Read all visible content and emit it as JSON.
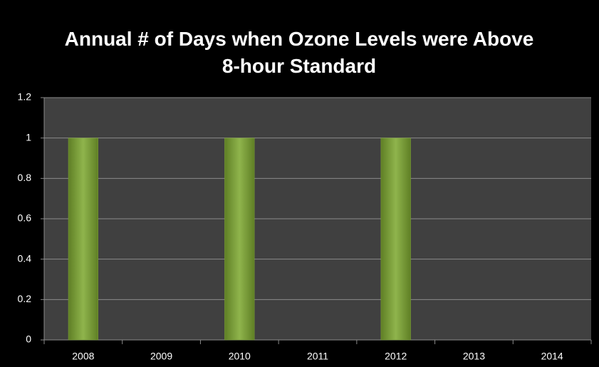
{
  "chart_data": {
    "type": "bar",
    "title": "Annual # of Days when Ozone Levels were Above 8-hour Standard",
    "categories": [
      "2008",
      "2009",
      "2010",
      "2011",
      "2012",
      "2013",
      "2014"
    ],
    "values": [
      1,
      0,
      1,
      0,
      1,
      0,
      0
    ],
    "color": "#7fa23a",
    "ylim": [
      0,
      1.2
    ],
    "yticks": [
      0,
      0.2,
      0.4,
      0.6,
      0.8,
      1,
      1.2
    ],
    "grid": true
  }
}
